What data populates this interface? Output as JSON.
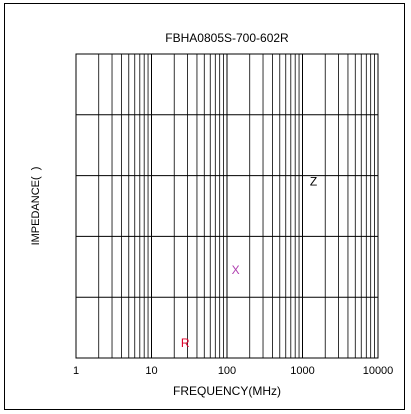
{
  "chart_data": {
    "type": "line",
    "title": "FBHA0805S-700-602R",
    "xlabel": "FREQUENCY(MHz)",
    "ylabel": "IMPEDANCE(  )",
    "x_scale": "log",
    "xlim": [
      1,
      10000
    ],
    "x_ticks": [
      {
        "value": 1,
        "label": "1"
      },
      {
        "value": 10,
        "label": "10"
      },
      {
        "value": 100,
        "label": "100"
      },
      {
        "value": 1000,
        "label": "1000"
      },
      {
        "value": 10000,
        "label": "10000"
      }
    ],
    "y_divisions": 5,
    "grid": true,
    "series": [],
    "curve_labels": [
      {
        "text": "Z",
        "x": 1400,
        "color": "#000000"
      },
      {
        "text": "X",
        "x": 130,
        "color": "#b040b0"
      },
      {
        "text": "R",
        "x": 28,
        "color": "#e0002a"
      }
    ]
  }
}
